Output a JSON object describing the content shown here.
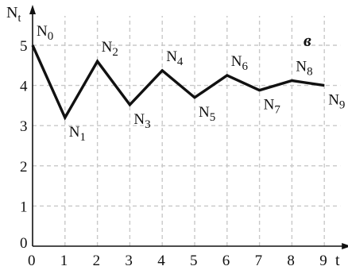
{
  "chart_data": {
    "type": "line",
    "panel_label": "в",
    "xlabel": "t",
    "ylabel": {
      "main": "N",
      "sub": "t"
    },
    "xlim": [
      0,
      9
    ],
    "ylim": [
      0,
      5
    ],
    "x_ticks": [
      "0",
      "1",
      "2",
      "3",
      "4",
      "5",
      "6",
      "7",
      "8",
      "9"
    ],
    "y_ticks": [
      "0",
      "1",
      "2",
      "3",
      "4",
      "5"
    ],
    "grid": true,
    "grid_style": "dashed",
    "line_color": "#111111",
    "grid_color": "#c8c8c8",
    "series": [
      {
        "x": [
          0,
          1,
          2,
          3,
          4,
          5,
          6,
          7,
          8,
          9
        ],
        "y": [
          5.0,
          3.2,
          4.6,
          3.52,
          4.37,
          3.7,
          4.25,
          3.88,
          4.12,
          4.0
        ],
        "point_labels": [
          {
            "main": "N",
            "sub": "0"
          },
          {
            "main": "N",
            "sub": "1"
          },
          {
            "main": "N",
            "sub": "2"
          },
          {
            "main": "N",
            "sub": "3"
          },
          {
            "main": "N",
            "sub": "4"
          },
          {
            "main": "N",
            "sub": "5"
          },
          {
            "main": "N",
            "sub": "6"
          },
          {
            "main": "N",
            "sub": "7"
          },
          {
            "main": "N",
            "sub": "8"
          },
          {
            "main": "N",
            "sub": "9"
          }
        ]
      }
    ]
  }
}
